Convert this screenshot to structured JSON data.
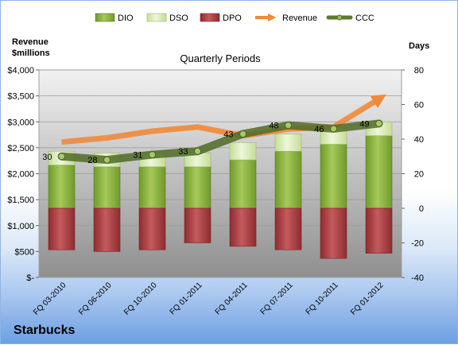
{
  "chart_data": {
    "type": "bar",
    "title": "Quarterly Periods",
    "footer": "Starbucks",
    "left_axis_label_line1": "Revenue",
    "left_axis_label_line2": "$millions",
    "right_axis_label": "Days",
    "left_axis": {
      "range": [
        0,
        4000
      ],
      "ticks": [
        "$-",
        "$500",
        "$1,000",
        "$1,500",
        "$2,000",
        "$2,500",
        "$3,000",
        "$3,500",
        "$4,000"
      ]
    },
    "right_axis": {
      "range": [
        -40,
        80
      ],
      "ticks": [
        "-40",
        "-20",
        "0",
        "20",
        "40",
        "60",
        "80"
      ]
    },
    "categories": [
      "FQ 03-2010",
      "FQ 06-2010",
      "FQ 10-2010",
      "FQ 01-2011",
      "FQ 04-2011",
      "FQ 07-2011",
      "FQ 10-2011",
      "FQ 01-2012"
    ],
    "legend": [
      "DIO",
      "DSO",
      "DPO",
      "Revenue",
      "CCC"
    ],
    "grid": true,
    "colors": {
      "DIO": "#8db23c",
      "DSO": "#d4e8ae",
      "DPO": "#b64448",
      "Revenue": "#f08a3a",
      "CCC": "#5a7a2a"
    },
    "series": [
      {
        "name": "DIO",
        "axis": "right",
        "values": [
          25,
          24,
          24,
          24,
          28,
          33,
          37,
          42
        ]
      },
      {
        "name": "DSO",
        "axis": "right",
        "values": [
          8,
          8,
          8,
          8,
          10,
          10,
          10,
          8
        ]
      },
      {
        "name": "DPO",
        "axis": "right",
        "values": [
          -24,
          -25,
          -24,
          -20,
          -22,
          -24,
          -29,
          -26
        ]
      },
      {
        "name": "Revenue",
        "axis": "left",
        "values": [
          2610,
          2690,
          2820,
          2900,
          2730,
          2860,
          2900,
          3440
        ]
      },
      {
        "name": "CCC",
        "axis": "right",
        "values": [
          30,
          28,
          31,
          33,
          43,
          48,
          46,
          49
        ],
        "labels": [
          "30",
          "28",
          "31",
          "33",
          "43",
          "48",
          "46",
          "49"
        ]
      }
    ]
  }
}
